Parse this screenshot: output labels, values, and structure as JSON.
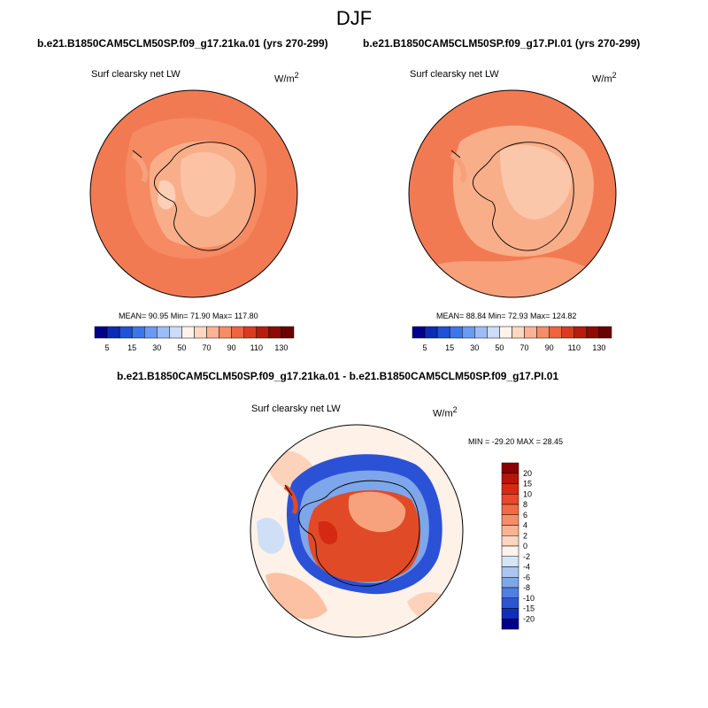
{
  "page": {
    "title": "DJF"
  },
  "panels": [
    {
      "case": "b.e21.B1850CAM5CLM50SP.f09_g17.21ka.01 (yrs 270-299)",
      "variable": "Surf clearsky net LW",
      "units": "W/m",
      "units_exp": "2",
      "stats": "MEAN=  90.95  Min=  71.90  Max= 117.80"
    },
    {
      "case": "b.e21.B1850CAM5CLM50SP.f09_g17.PI.01 (yrs 270-299)",
      "variable": "Surf clearsky net LW",
      "units": "W/m",
      "units_exp": "2",
      "stats": "MEAN=  88.84  Min=  72.93  Max= 124.82"
    },
    {
      "case": "b.e21.B1850CAM5CLM50SP.f09_g17.21ka.01 - b.e21.B1850CAM5CLM50SP.f09_g17.PI.01",
      "variable": "Surf clearsky net LW",
      "units": "W/m",
      "units_exp": "2",
      "stats": "MIN = -29.20 MAX =  28.45"
    }
  ],
  "abs_colorbar": {
    "labels": [
      "5",
      "15",
      "30",
      "50",
      "70",
      "90",
      "110",
      "130"
    ],
    "colors": [
      "#00008b",
      "#0b2bb8",
      "#2052d8",
      "#3d75ec",
      "#6a9af3",
      "#9cbdf6",
      "#cddcf8",
      "#fff3ec",
      "#fdd8c3",
      "#fcb394",
      "#f88c66",
      "#f0643f",
      "#dc3a1f",
      "#b81c0e",
      "#8e0b05",
      "#6b0000"
    ]
  },
  "diff_colorbar": {
    "labels": [
      "20",
      "15",
      "10",
      "8",
      "6",
      "4",
      "2",
      "0",
      "-2",
      "-4",
      "-6",
      "-8",
      "-10",
      "-15",
      "-20"
    ],
    "colors": [
      "#8b0000",
      "#b5150a",
      "#d42a14",
      "#e9482a",
      "#f36a45",
      "#f78d68",
      "#fab392",
      "#fdd6c0",
      "#fdf3ec",
      "#d6e4f6",
      "#aac6f1",
      "#7ea6ea",
      "#4f7fe1",
      "#2a56d1",
      "#0f2fb8",
      "#00008b"
    ]
  },
  "map_colors": {
    "ocean_21ka": "#f27a52",
    "ocean_pi": "#f58a63",
    "land_light": "#fbc7aa",
    "land_mid": "#f7a47f",
    "diff_blue": "#2b52d6",
    "diff_red": "#e14a27",
    "diff_pale": "#fde0cf"
  }
}
